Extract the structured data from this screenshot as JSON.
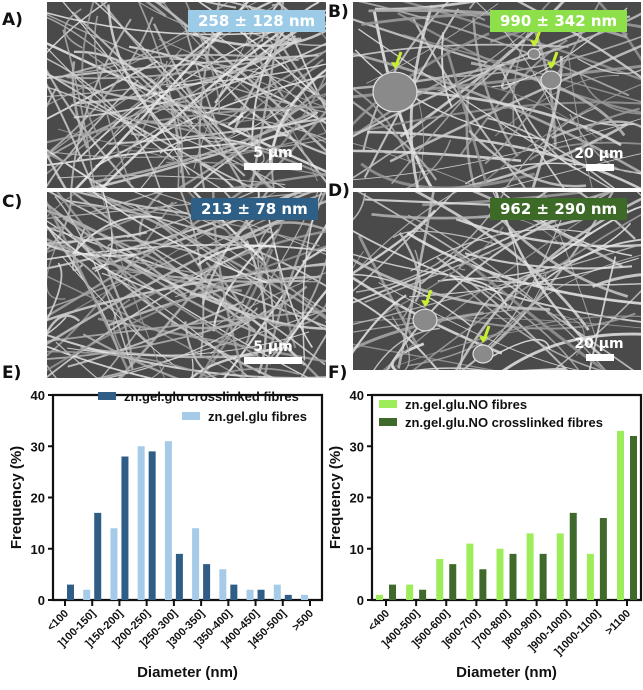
{
  "panels": {
    "A": {
      "label": "A)",
      "badge": "258 ± 128 nm",
      "badge_color": "#9ccbe8",
      "scale": "5 µm"
    },
    "B": {
      "label": "B)",
      "badge": "990 ± 342 nm",
      "badge_color": "#8ee04a",
      "scale": "20 µm"
    },
    "C": {
      "label": "C)",
      "badge": "213 ± 78 nm",
      "badge_color": "#2d5f87",
      "scale": "5 µm"
    },
    "D": {
      "label": "D)",
      "badge": "962 ± 290 nm",
      "badge_color": "#3d6b27",
      "scale": "20 µm"
    },
    "E": {
      "label": "E)"
    },
    "F": {
      "label": "F)"
    }
  },
  "arrow_color": "#c8f032",
  "chart_data": [
    {
      "type": "bar",
      "panel": "E",
      "title": "",
      "xlabel": "Diameter (nm)",
      "ylabel": "Frequency (%)",
      "ylim": [
        0,
        40
      ],
      "yticks": [
        0,
        10,
        20,
        30,
        40
      ],
      "grid": false,
      "legend_position": "top-right",
      "categories": [
        "<100",
        "]100-150]",
        "]150-200]",
        "]200-250]",
        "]250-300]",
        "]300-350]",
        "]350-400]",
        "]400-450]",
        "]450-500]",
        ">500"
      ],
      "series": [
        {
          "name": "zn.gel.glu crosslinked fibres",
          "color": "#2f5d85",
          "values": [
            3,
            17,
            28,
            29,
            9,
            7,
            3,
            2,
            1,
            0
          ]
        },
        {
          "name": "zn.gel.glu fibres",
          "color": "#a6cbe8",
          "values": [
            0,
            2,
            14,
            30,
            31,
            14,
            6,
            2,
            3,
            1
          ]
        }
      ],
      "bar_order": [
        "light-first-for-offset"
      ]
    },
    {
      "type": "bar",
      "panel": "F",
      "title": "",
      "xlabel": "Diameter (nm)",
      "ylabel": "Frequency (%)",
      "ylim": [
        0,
        40
      ],
      "yticks": [
        0,
        10,
        20,
        30,
        40
      ],
      "grid": false,
      "legend_position": "top-left",
      "categories": [
        "<400",
        "]400-500]",
        "]500-600]",
        "]600-700]",
        "]700-800]",
        "]800-900]",
        "]900-1000]",
        "]1000-1100]",
        ">1100"
      ],
      "series": [
        {
          "name": "zn.gel.glu.NO fibres",
          "color": "#9ded5a",
          "values": [
            1,
            3,
            8,
            11,
            10,
            13,
            13,
            9,
            33
          ]
        },
        {
          "name": "zn.gel.glu.NO crosslinked fibres",
          "color": "#3f6a2c",
          "values": [
            3,
            2,
            7,
            6,
            9,
            9,
            17,
            16,
            32
          ]
        }
      ]
    }
  ]
}
